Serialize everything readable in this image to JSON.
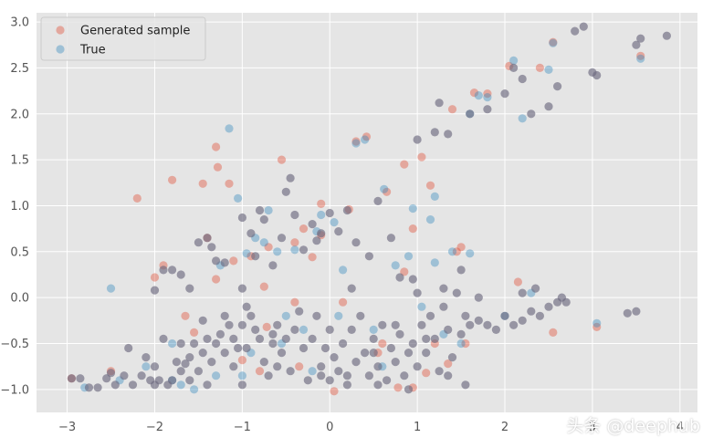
{
  "chart_data": {
    "type": "scatter",
    "xlim": [
      -3.35,
      4.2
    ],
    "ylim": [
      -1.25,
      3.1
    ],
    "x_ticks": [
      -3,
      -2,
      -1,
      0,
      1,
      2,
      3,
      4
    ],
    "y_ticks": [
      -1.0,
      -0.5,
      0.0,
      0.5,
      1.0,
      1.5,
      2.0,
      2.5,
      3.0
    ],
    "x_tick_labels": [
      "−3",
      "−2",
      "−1",
      "0",
      "1",
      "2",
      "3",
      "4"
    ],
    "y_tick_labels": [
      "−1.0",
      "−0.5",
      "0.0",
      "0.5",
      "1.0",
      "1.5",
      "2.0",
      "2.5",
      "3.0"
    ],
    "grid": true,
    "legend": "top-left",
    "series": [
      {
        "name": "Generated sample",
        "color": "#E24A33",
        "alpha": 0.4,
        "points": [
          [
            -2.95,
            -0.88
          ],
          [
            -2.5,
            -0.8
          ],
          [
            -2.2,
            1.08
          ],
          [
            -2.0,
            0.22
          ],
          [
            -1.9,
            0.35
          ],
          [
            -1.8,
            1.28
          ],
          [
            -1.65,
            -0.2
          ],
          [
            -1.55,
            -0.38
          ],
          [
            -1.45,
            1.24
          ],
          [
            -1.4,
            0.65
          ],
          [
            -1.3,
            1.64
          ],
          [
            -1.28,
            1.42
          ],
          [
            -1.3,
            0.2
          ],
          [
            -1.15,
            1.24
          ],
          [
            -1.1,
            0.4
          ],
          [
            -1.0,
            -0.68
          ],
          [
            -0.9,
            0.45
          ],
          [
            -0.8,
            -0.8
          ],
          [
            -0.75,
            0.12
          ],
          [
            -0.7,
            0.55
          ],
          [
            -0.55,
            1.5
          ],
          [
            -0.4,
            0.6
          ],
          [
            -0.4,
            -0.05
          ],
          [
            -0.3,
            0.75
          ],
          [
            -0.2,
            0.44
          ],
          [
            -0.1,
            0.68
          ],
          [
            -0.1,
            1.02
          ],
          [
            0.05,
            -1.02
          ],
          [
            0.15,
            -0.05
          ],
          [
            0.22,
            0.96
          ],
          [
            0.3,
            1.7
          ],
          [
            0.42,
            1.75
          ],
          [
            0.55,
            -0.6
          ],
          [
            0.6,
            -0.5
          ],
          [
            0.65,
            1.15
          ],
          [
            0.85,
            1.45
          ],
          [
            0.85,
            0.28
          ],
          [
            0.95,
            0.75
          ],
          [
            0.95,
            -0.98
          ],
          [
            1.05,
            1.53
          ],
          [
            1.15,
            1.22
          ],
          [
            1.2,
            -0.5
          ],
          [
            1.35,
            -0.72
          ],
          [
            1.45,
            0.5
          ],
          [
            1.5,
            0.55
          ],
          [
            1.55,
            -0.5
          ],
          [
            1.65,
            2.23
          ],
          [
            1.8,
            2.22
          ],
          [
            2.15,
            0.17
          ],
          [
            2.4,
            2.5
          ],
          [
            2.55,
            2.78
          ],
          [
            2.55,
            -0.38
          ],
          [
            3.05,
            -0.32
          ],
          [
            3.55,
            2.63
          ],
          [
            0.78,
            -0.98
          ],
          [
            -0.72,
            -0.32
          ],
          [
            1.4,
            2.05
          ],
          [
            2.05,
            2.52
          ],
          [
            -0.35,
            -0.75
          ],
          [
            1.1,
            -0.82
          ]
        ]
      },
      {
        "name": "True",
        "color": "#348ABD",
        "alpha": 0.4,
        "points": [
          [
            -2.8,
            -0.98
          ],
          [
            -2.5,
            0.1
          ],
          [
            -2.4,
            -0.9
          ],
          [
            -2.1,
            -0.75
          ],
          [
            -1.8,
            -0.5
          ],
          [
            -1.7,
            -0.95
          ],
          [
            -1.55,
            -1.0
          ],
          [
            -1.3,
            -0.85
          ],
          [
            -1.25,
            0.35
          ],
          [
            -1.15,
            1.84
          ],
          [
            -1.05,
            1.08
          ],
          [
            -0.95,
            0.48
          ],
          [
            -0.9,
            -0.6
          ],
          [
            -0.85,
            0.65
          ],
          [
            -0.75,
            0.6
          ],
          [
            -0.7,
            0.95
          ],
          [
            -0.6,
            0.5
          ],
          [
            -0.5,
            -0.2
          ],
          [
            -0.4,
            0.52
          ],
          [
            -0.3,
            -0.35
          ],
          [
            -0.2,
            -0.8
          ],
          [
            -0.15,
            0.72
          ],
          [
            -0.1,
            0.9
          ],
          [
            0.05,
            0.82
          ],
          [
            0.1,
            -0.2
          ],
          [
            0.15,
            0.3
          ],
          [
            0.3,
            1.68
          ],
          [
            0.4,
            1.72
          ],
          [
            0.5,
            -0.35
          ],
          [
            0.62,
            1.18
          ],
          [
            0.75,
            0.35
          ],
          [
            0.9,
            0.45
          ],
          [
            0.95,
            0.97
          ],
          [
            1.05,
            -0.1
          ],
          [
            1.15,
            0.85
          ],
          [
            1.2,
            0.38
          ],
          [
            1.2,
            1.1
          ],
          [
            1.3,
            -0.4
          ],
          [
            1.4,
            0.5
          ],
          [
            1.5,
            -0.5
          ],
          [
            1.6,
            0.48
          ],
          [
            1.6,
            2.0
          ],
          [
            1.7,
            2.2
          ],
          [
            1.8,
            2.18
          ],
          [
            2.0,
            -0.2
          ],
          [
            2.1,
            2.58
          ],
          [
            2.2,
            1.95
          ],
          [
            2.3,
            0.05
          ],
          [
            2.5,
            2.48
          ],
          [
            2.55,
            2.77
          ],
          [
            3.05,
            -0.28
          ],
          [
            3.55,
            2.6
          ],
          [
            -1.0,
            -0.85
          ],
          [
            -1.8,
            -0.9
          ],
          [
            -0.55,
            -0.5
          ],
          [
            0.6,
            -0.75
          ]
        ]
      },
      {
        "name": "",
        "color": "#6d6a80",
        "alpha": 0.65,
        "points": [
          [
            -2.95,
            -0.88
          ],
          [
            -2.85,
            -0.88
          ],
          [
            -2.75,
            -0.98
          ],
          [
            -2.65,
            -0.98
          ],
          [
            -2.55,
            -0.88
          ],
          [
            -2.5,
            -0.82
          ],
          [
            -2.45,
            -0.95
          ],
          [
            -2.35,
            -0.85
          ],
          [
            -2.3,
            -0.55
          ],
          [
            -2.25,
            -0.95
          ],
          [
            -2.15,
            -0.85
          ],
          [
            -2.1,
            -0.65
          ],
          [
            -2.05,
            -0.9
          ],
          [
            -2.0,
            -0.95
          ],
          [
            -2.0,
            -0.75
          ],
          [
            -1.95,
            -0.9
          ],
          [
            -1.9,
            -0.45
          ],
          [
            -1.85,
            -0.95
          ],
          [
            -1.8,
            -0.9
          ],
          [
            -1.75,
            -0.7
          ],
          [
            -1.7,
            -0.8
          ],
          [
            -1.65,
            -0.72
          ],
          [
            -1.6,
            -0.9
          ],
          [
            -1.55,
            -0.5
          ],
          [
            -1.5,
            -0.8
          ],
          [
            -1.45,
            -0.6
          ],
          [
            -1.4,
            -0.45
          ],
          [
            -1.35,
            -0.7
          ],
          [
            -1.3,
            -0.5
          ],
          [
            -1.25,
            -0.4
          ],
          [
            -1.2,
            -0.6
          ],
          [
            -1.15,
            -0.3
          ],
          [
            -1.1,
            -0.45
          ],
          [
            -1.05,
            -0.55
          ],
          [
            -1.0,
            -0.3
          ],
          [
            -0.95,
            -0.1
          ],
          [
            -0.9,
            -0.2
          ],
          [
            -0.85,
            -0.35
          ],
          [
            -0.8,
            -0.45
          ],
          [
            -0.75,
            -0.7
          ],
          [
            -0.7,
            -0.85
          ],
          [
            -0.65,
            -0.5
          ],
          [
            -0.6,
            -0.3
          ],
          [
            -0.55,
            -0.6
          ],
          [
            -0.5,
            -0.45
          ],
          [
            -0.45,
            -0.8
          ],
          [
            -0.4,
            -0.35
          ],
          [
            -0.35,
            -0.15
          ],
          [
            -0.3,
            -0.55
          ],
          [
            -0.25,
            -0.9
          ],
          [
            -0.2,
            -0.45
          ],
          [
            -0.15,
            -0.2
          ],
          [
            -0.1,
            -0.75
          ],
          [
            -0.05,
            -0.55
          ],
          [
            0.0,
            -0.35
          ],
          [
            0.0,
            -0.9
          ],
          [
            0.05,
            -0.65
          ],
          [
            0.1,
            -0.8
          ],
          [
            0.15,
            -0.5
          ],
          [
            0.2,
            -0.85
          ],
          [
            0.25,
            -0.35
          ],
          [
            0.3,
            -0.7
          ],
          [
            0.35,
            -0.2
          ],
          [
            0.4,
            -0.6
          ],
          [
            0.45,
            -0.85
          ],
          [
            0.5,
            -0.45
          ],
          [
            0.55,
            -0.75
          ],
          [
            0.6,
            -0.3
          ],
          [
            0.65,
            -0.9
          ],
          [
            0.7,
            -0.55
          ],
          [
            0.75,
            -0.7
          ],
          [
            0.8,
            -0.4
          ],
          [
            0.85,
            -0.85
          ],
          [
            0.9,
            -0.6
          ],
          [
            0.95,
            -0.5
          ],
          [
            1.0,
            -0.75
          ],
          [
            1.05,
            -0.3
          ],
          [
            1.1,
            -0.6
          ],
          [
            1.15,
            -0.2
          ],
          [
            1.2,
            -0.45
          ],
          [
            1.25,
            -0.8
          ],
          [
            1.3,
            -0.1
          ],
          [
            1.35,
            -0.35
          ],
          [
            1.4,
            -0.65
          ],
          [
            1.45,
            0.05
          ],
          [
            1.5,
            -0.4
          ],
          [
            1.55,
            -0.2
          ],
          [
            1.6,
            -0.3
          ],
          [
            1.7,
            -0.25
          ],
          [
            1.8,
            -0.3
          ],
          [
            1.9,
            -0.35
          ],
          [
            2.0,
            -0.2
          ],
          [
            2.1,
            -0.3
          ],
          [
            2.2,
            -0.25
          ],
          [
            2.3,
            -0.15
          ],
          [
            2.4,
            -0.2
          ],
          [
            2.5,
            -0.1
          ],
          [
            2.6,
            -0.05
          ],
          [
            2.7,
            -0.05
          ],
          [
            3.5,
            -0.15
          ],
          [
            -2.0,
            0.08
          ],
          [
            -1.9,
            0.3
          ],
          [
            -1.8,
            0.3
          ],
          [
            -1.7,
            0.25
          ],
          [
            -1.6,
            0.1
          ],
          [
            -1.5,
            0.6
          ],
          [
            -1.4,
            0.65
          ],
          [
            -1.35,
            0.55
          ],
          [
            -1.3,
            0.4
          ],
          [
            -1.2,
            0.38
          ],
          [
            -1.0,
            0.1
          ],
          [
            -1.0,
            0.87
          ],
          [
            -0.9,
            0.7
          ],
          [
            -0.85,
            0.45
          ],
          [
            -0.8,
            0.95
          ],
          [
            -0.75,
            0.85
          ],
          [
            -0.65,
            0.35
          ],
          [
            -0.55,
            0.65
          ],
          [
            -0.5,
            1.15
          ],
          [
            -0.45,
            1.3
          ],
          [
            -0.4,
            0.9
          ],
          [
            -0.3,
            0.52
          ],
          [
            -0.2,
            0.8
          ],
          [
            -0.15,
            0.62
          ],
          [
            -0.1,
            0.7
          ],
          [
            0.0,
            0.92
          ],
          [
            0.1,
            0.72
          ],
          [
            0.2,
            0.95
          ],
          [
            0.3,
            0.6
          ],
          [
            0.45,
            0.45
          ],
          [
            0.55,
            1.05
          ],
          [
            0.7,
            0.65
          ],
          [
            0.8,
            0.22
          ],
          [
            0.95,
            0.2
          ],
          [
            1.0,
            1.72
          ],
          [
            1.1,
            -0.45
          ],
          [
            1.2,
            1.8
          ],
          [
            1.25,
            2.12
          ],
          [
            1.35,
            1.78
          ],
          [
            1.5,
            0.3
          ],
          [
            1.6,
            2.0
          ],
          [
            1.7,
            0.0
          ],
          [
            1.8,
            2.05
          ],
          [
            2.0,
            2.22
          ],
          [
            2.1,
            2.5
          ],
          [
            2.2,
            2.38
          ],
          [
            2.3,
            2.0
          ],
          [
            2.5,
            2.08
          ],
          [
            2.6,
            2.3
          ],
          [
            2.8,
            2.9
          ],
          [
            2.9,
            2.95
          ],
          [
            3.0,
            2.45
          ],
          [
            3.05,
            2.42
          ],
          [
            3.5,
            2.75
          ],
          [
            3.55,
            2.82
          ],
          [
            3.85,
            2.85
          ],
          [
            3.4,
            -0.17
          ],
          [
            2.2,
            0.05
          ],
          [
            2.35,
            0.1
          ],
          [
            2.65,
            0.0
          ],
          [
            -0.65,
            -0.4
          ],
          [
            -0.95,
            -0.55
          ],
          [
            -1.1,
            -0.75
          ],
          [
            -1.2,
            -0.2
          ],
          [
            0.25,
            0.1
          ],
          [
            0.5,
            -0.6
          ],
          [
            0.75,
            -0.3
          ],
          [
            1.0,
            0.05
          ],
          [
            1.3,
            0.1
          ],
          [
            -1.45,
            -0.25
          ],
          [
            -1.7,
            -0.5
          ],
          [
            -1.6,
            -0.65
          ],
          [
            -1.4,
            -0.95
          ],
          [
            -1.0,
            -0.95
          ],
          [
            -0.6,
            -0.75
          ],
          [
            -0.1,
            -0.85
          ],
          [
            0.2,
            -0.95
          ],
          [
            0.55,
            -0.95
          ],
          [
            0.9,
            -1.0
          ],
          [
            1.35,
            -0.85
          ],
          [
            1.55,
            -0.95
          ]
        ]
      }
    ]
  },
  "watermark": "头条 @deephub"
}
